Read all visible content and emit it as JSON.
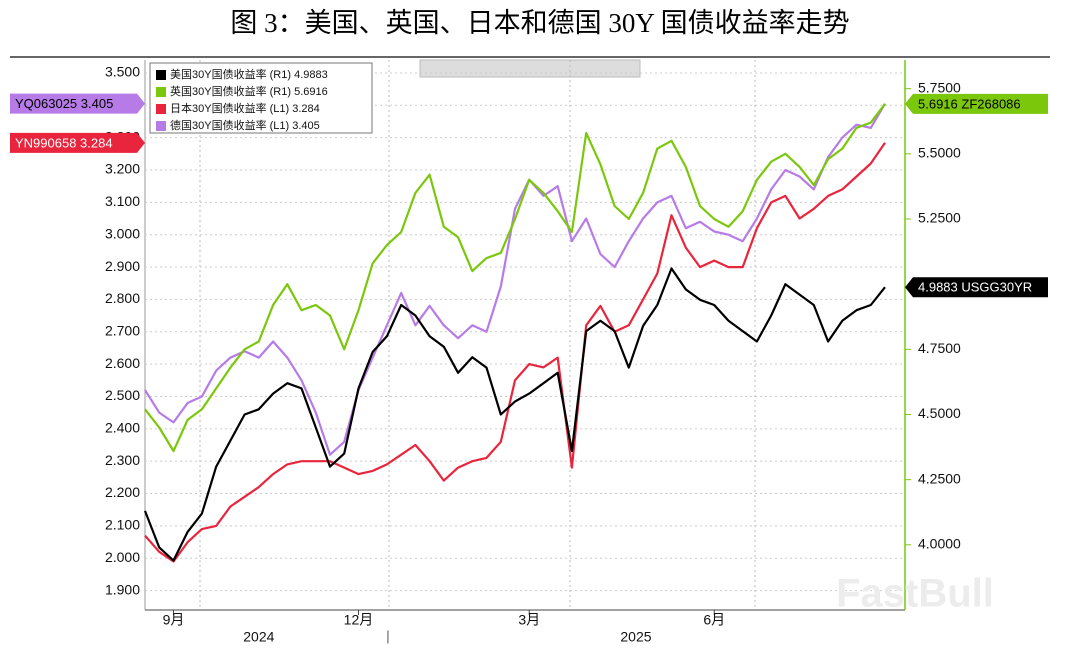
{
  "chart_data": {
    "type": "line",
    "title": "图 3：美国、英国、日本和德国 30Y 国债收益率走势",
    "categories": [
      null,
      null,
      "9月",
      null,
      null,
      null,
      null,
      null,
      null,
      null,
      null,
      null,
      null,
      null,
      null,
      "12月",
      null,
      null,
      null,
      null,
      null,
      null,
      null,
      null,
      null,
      null,
      null,
      "3月",
      null,
      null,
      null,
      null,
      null,
      null,
      null,
      null,
      null,
      null,
      null,
      null,
      "6月",
      null,
      null,
      null,
      null,
      null,
      null,
      null,
      null,
      null,
      null,
      null,
      null
    ],
    "x_groups": [
      {
        "label": "2024",
        "count": 17
      },
      {
        "label": "2025",
        "count": 36
      }
    ],
    "ylim": [
      1.84,
      3.54
    ],
    "yticks": [
      {
        "value": 3.5,
        "label": "3.500"
      },
      {
        "value": 3.4,
        "label": "3.400"
      },
      {
        "value": 3.3,
        "label": "3.300"
      },
      {
        "value": 3.2,
        "label": "3.200"
      },
      {
        "value": 3.1,
        "label": "3.100"
      },
      {
        "value": 3.0,
        "label": "3.000"
      },
      {
        "value": 2.9,
        "label": "2.900"
      },
      {
        "value": 2.8,
        "label": "2.800"
      },
      {
        "value": 2.7,
        "label": "2.700"
      },
      {
        "value": 2.6,
        "label": "2.600"
      },
      {
        "value": 2.5,
        "label": "2.500"
      },
      {
        "value": 2.4,
        "label": "2.400"
      },
      {
        "value": 2.3,
        "label": "2.300"
      },
      {
        "value": 2.2,
        "label": "2.200"
      },
      {
        "value": 2.1,
        "label": "2.100"
      },
      {
        "value": 2.0,
        "label": "2.000"
      },
      {
        "value": 1.9,
        "label": "1.900"
      }
    ],
    "y2lim": [
      3.75,
      5.86
    ],
    "y2ticks": [
      {
        "value": 5.75,
        "label": "5.7500"
      },
      {
        "value": 5.5,
        "label": "5.5000"
      },
      {
        "value": 5.25,
        "label": "5.2500"
      },
      {
        "value": 4.75,
        "label": "4.7500"
      },
      {
        "value": 4.5,
        "label": "4.5000"
      },
      {
        "value": 4.25,
        "label": "4.2500"
      },
      {
        "value": 4.0,
        "label": "4.0000"
      }
    ],
    "grid": true,
    "legend": "top-left",
    "watermark": "FastBull",
    "series": [
      {
        "name": "美国30Y国债收益率 (R1) 4.9883",
        "color": "#000000",
        "axis": "y2",
        "tag": "4.9883 USGG30YR",
        "tag_side": "right",
        "tag_text_color": "#ffffff",
        "values": [
          4.13,
          3.99,
          3.94,
          4.05,
          4.12,
          4.3,
          4.4,
          4.5,
          4.52,
          4.58,
          4.62,
          4.6,
          4.45,
          4.3,
          4.35,
          4.6,
          4.74,
          4.8,
          4.92,
          4.88,
          4.8,
          4.76,
          4.66,
          4.72,
          4.68,
          4.5,
          4.55,
          4.58,
          4.62,
          4.66,
          4.36,
          4.82,
          4.86,
          4.82,
          4.68,
          4.84,
          4.92,
          5.06,
          4.98,
          4.94,
          4.92,
          4.86,
          4.82,
          4.78,
          4.88,
          5.0,
          4.96,
          4.92,
          4.78,
          4.86,
          4.9,
          4.92,
          4.9883
        ]
      },
      {
        "name": "英国30Y国债收益率 (R1) 5.6916",
        "color": "#7ac70c",
        "axis": "y2",
        "tag": "5.6916 ZF268086",
        "tag_side": "right",
        "tag_text_color": "#000000",
        "values": [
          4.52,
          4.45,
          4.36,
          4.48,
          4.52,
          4.6,
          4.68,
          4.75,
          4.78,
          4.92,
          5.0,
          4.9,
          4.92,
          4.88,
          4.75,
          4.9,
          5.08,
          5.15,
          5.2,
          5.35,
          5.42,
          5.22,
          5.18,
          5.05,
          5.1,
          5.12,
          5.25,
          5.4,
          5.35,
          5.28,
          5.2,
          5.58,
          5.46,
          5.3,
          5.25,
          5.35,
          5.52,
          5.55,
          5.45,
          5.3,
          5.25,
          5.22,
          5.28,
          5.4,
          5.47,
          5.5,
          5.45,
          5.38,
          5.48,
          5.52,
          5.6,
          5.62,
          5.6916
        ]
      },
      {
        "name": "日本30Y国债收益率 (L1) 3.284",
        "color": "#e8253c",
        "axis": "y",
        "tag": "YN990658 3.284",
        "tag_side": "left",
        "tag_text_color": "#ffffff",
        "values": [
          2.07,
          2.02,
          1.99,
          2.05,
          2.09,
          2.1,
          2.16,
          2.19,
          2.22,
          2.26,
          2.29,
          2.3,
          2.3,
          2.3,
          2.28,
          2.26,
          2.27,
          2.29,
          2.32,
          2.35,
          2.3,
          2.24,
          2.28,
          2.3,
          2.31,
          2.36,
          2.55,
          2.6,
          2.59,
          2.62,
          2.28,
          2.72,
          2.78,
          2.7,
          2.72,
          2.8,
          2.88,
          3.06,
          2.96,
          2.9,
          2.92,
          2.9,
          2.9,
          3.02,
          3.1,
          3.12,
          3.05,
          3.08,
          3.12,
          3.14,
          3.18,
          3.22,
          3.284
        ]
      },
      {
        "name": "德国30Y国债收益率 (L1) 3.405",
        "color": "#b77be8",
        "axis": "y",
        "tag": "YQ063025 3.405",
        "tag_side": "left",
        "tag_text_color": "#000000",
        "values": [
          2.52,
          2.45,
          2.42,
          2.48,
          2.5,
          2.58,
          2.62,
          2.64,
          2.62,
          2.67,
          2.62,
          2.55,
          2.45,
          2.32,
          2.36,
          2.52,
          2.62,
          2.72,
          2.82,
          2.72,
          2.78,
          2.72,
          2.68,
          2.72,
          2.7,
          2.84,
          3.08,
          3.17,
          3.12,
          3.15,
          2.98,
          3.05,
          2.94,
          2.9,
          2.98,
          3.05,
          3.1,
          3.12,
          3.02,
          3.04,
          3.01,
          3.0,
          2.98,
          3.05,
          3.14,
          3.2,
          3.18,
          3.14,
          3.24,
          3.3,
          3.34,
          3.33,
          3.405
        ]
      }
    ]
  }
}
